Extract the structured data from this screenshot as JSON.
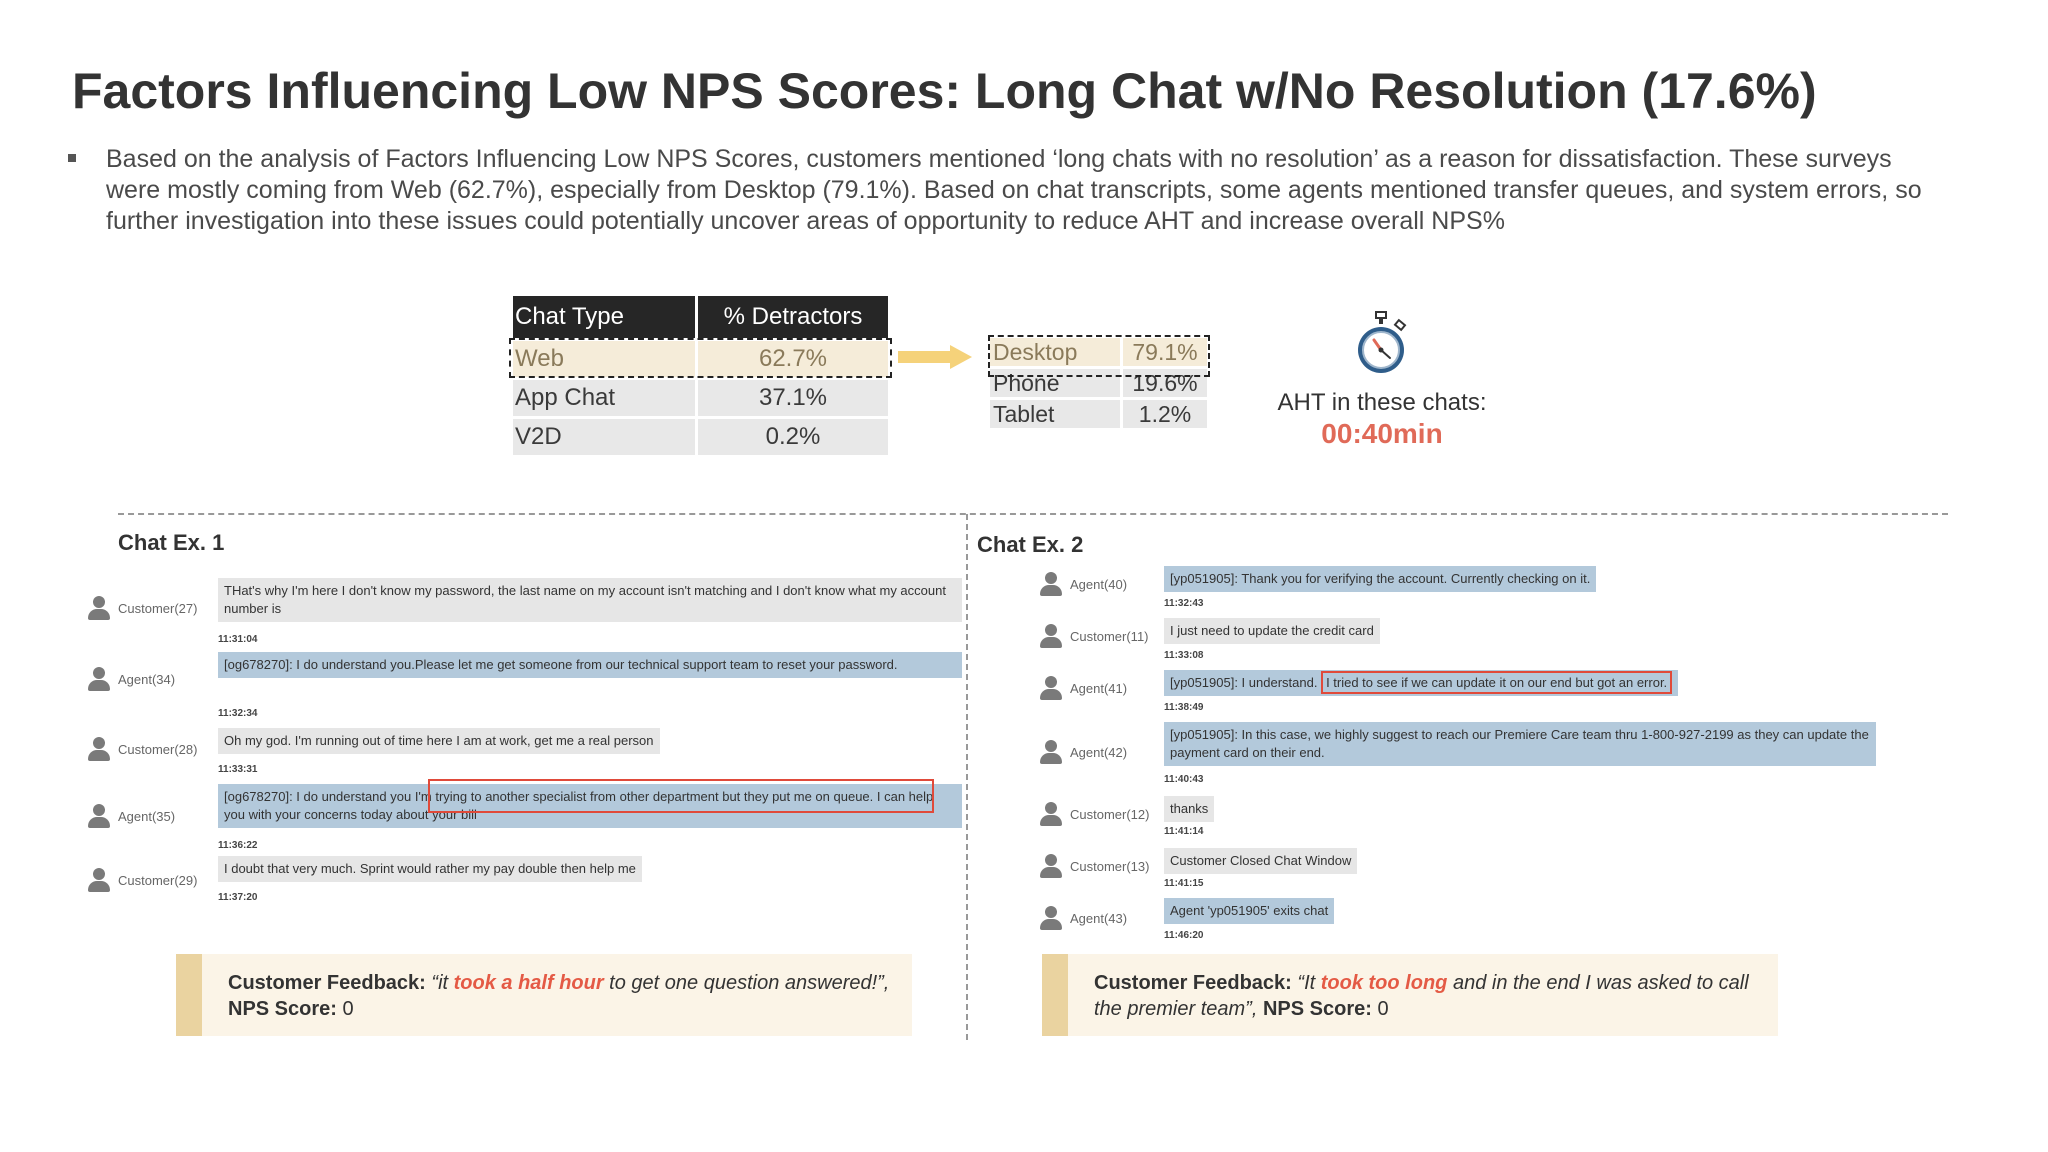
{
  "title": "Factors Influencing Low NPS Scores: Long Chat w/No Resolution (17.6%)",
  "bullet": "Based on the analysis of Factors Influencing Low NPS Scores, customers mentioned ‘long chats with no resolution’ as a reason for dissatisfaction. These surveys were mostly coming from Web (62.7%), especially from Desktop (79.1%). Based on chat transcripts, some agents mentioned transfer queues, and system errors, so further investigation into these issues could potentially uncover areas of opportunity to reduce AHT and increase overall NPS%",
  "table": {
    "headers": [
      "Chat Type",
      "% Detractors"
    ],
    "rows": [
      [
        "Web",
        "62.7%"
      ],
      [
        "App Chat",
        "37.1%"
      ],
      [
        "V2D",
        "0.2%"
      ]
    ]
  },
  "web_breakdown": [
    [
      "Desktop",
      "79.1%"
    ],
    [
      "Phone",
      "19.6%"
    ],
    [
      "Tablet",
      "1.2%"
    ]
  ],
  "aht": {
    "label": "AHT in these chats:",
    "value": "00:40min",
    "icon": "stopwatch-icon"
  },
  "chat1": {
    "title": "Chat Ex. 1",
    "messages": [
      {
        "who": "Customer(27)",
        "text": "THat's why I'm here I don't know my password, the last name on my account isn't matching and I don't know what my account number is",
        "time": "11:31:04"
      },
      {
        "who": "Agent(34)",
        "text": "[og678270]: I do understand you.Please let me get someone from our technical support team to reset your password.",
        "time": "11:32:34"
      },
      {
        "who": "Customer(28)",
        "text": "Oh my god. I'm running out of time here I am at work, get me a real person",
        "time": "11:33:31"
      },
      {
        "who": "Agent(35)",
        "text": "[og678270]: I do understand you I'm trying to another specialist from other department but they put me on queue. I can help you with your concerns today about your bill",
        "time": "11:36:22"
      },
      {
        "who": "Customer(29)",
        "text": "I doubt that very much. Sprint would rather my pay double then help me",
        "time": "11:37:20"
      }
    ],
    "feedback_label": "Customer Feedback:",
    "feedback_pre": "“it ",
    "feedback_hot": "took a half hour",
    "feedback_post": " to get one question answered!”,",
    "nps_label": "NPS Score:",
    "nps_value": "0"
  },
  "chat2": {
    "title": "Chat Ex. 2",
    "messages": [
      {
        "who": "Agent(40)",
        "text": "[yp051905]: Thank you for verifying the account. Currently checking on it.",
        "time": "11:32:43"
      },
      {
        "who": "Customer(11)",
        "text": "I just need to update the credit card",
        "time": "11:33:08"
      },
      {
        "who": "Agent(41)",
        "text_pre": "[yp051905]: I understand. ",
        "text_boxed": "I tried to see if we can update it on our end but got an error.",
        "time": "11:38:49"
      },
      {
        "who": "Agent(42)",
        "text": "[yp051905]: In this case, we highly suggest to reach our Premiere Care team thru 1-800-927-2199 as they can update the payment card on their end.",
        "time": "11:40:43"
      },
      {
        "who": "Customer(12)",
        "text": "thanks",
        "time": "11:41:14"
      },
      {
        "who": "Customer(13)",
        "text": "Customer Closed Chat Window",
        "time": "11:41:15"
      },
      {
        "who": "Agent(43)",
        "text": "Agent 'yp051905' exits chat",
        "time": "11:46:20"
      }
    ],
    "feedback_label": "Customer Feedback:",
    "feedback_pre": "“It ",
    "feedback_hot": "took too long",
    "feedback_post": " and in the end I was asked to call the premier team”,",
    "nps_label": "NPS Score:",
    "nps_value": "0"
  }
}
